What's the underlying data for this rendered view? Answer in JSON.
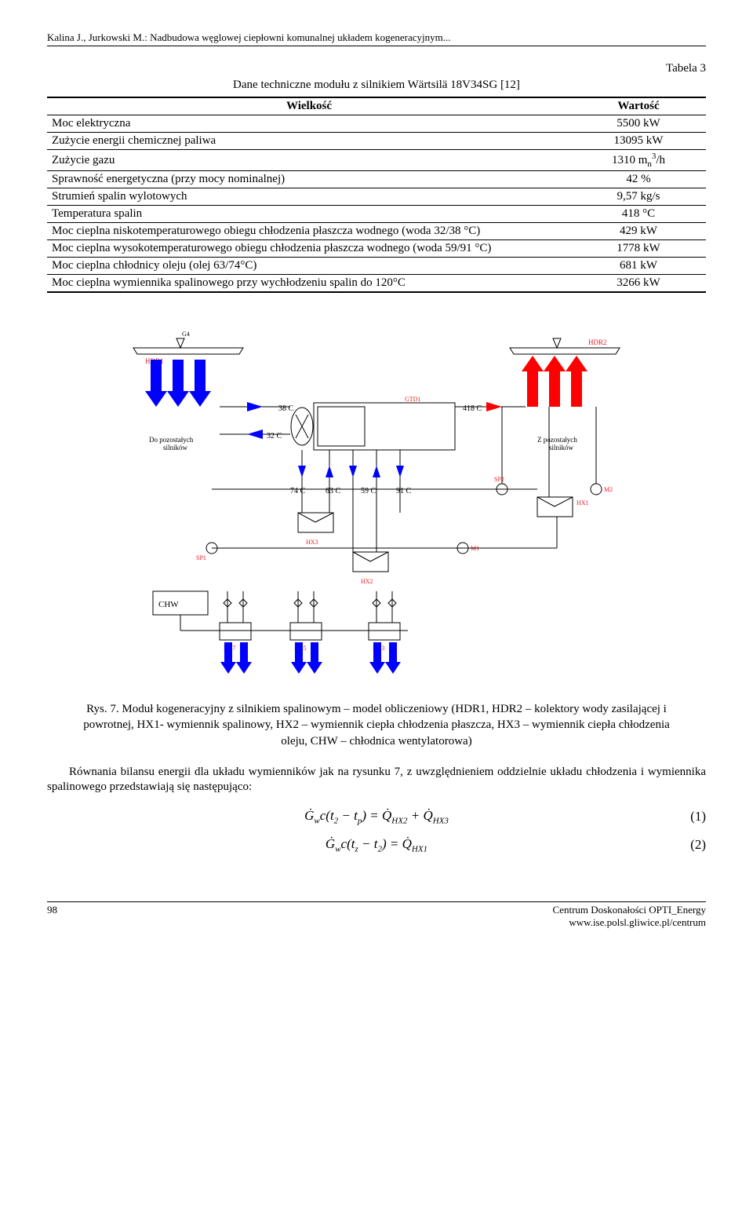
{
  "header": "Kalina J., Jurkowski M.: Nadbudowa węglowej ciepłowni komunalnej układem kogeneracyjnym...",
  "table": {
    "label": "Tabela 3",
    "caption": "Dane techniczne modułu z silnikiem Wärtsilä 18V34SG [12]",
    "head_col1": "Wielkość",
    "head_col2": "Wartość",
    "rows": [
      {
        "k": "Moc elektryczna",
        "v": "5500 kW"
      },
      {
        "k": "Zużycie energii chemicznej paliwa",
        "v": "13095 kW"
      },
      {
        "k": "Zużycie gazu",
        "v_html": "1310 m<sub>n</sub><sup>3</sup>/h"
      },
      {
        "k": "Sprawność energetyczna (przy mocy nominalnej)",
        "v": "42 %"
      },
      {
        "k": "Strumień spalin wylotowych",
        "v": "9,57 kg/s"
      },
      {
        "k": "Temperatura spalin",
        "v": "418 °C"
      },
      {
        "k": "Moc cieplna niskotemperaturowego obiegu chłodzenia płaszcza wodnego (woda 32/38 °C)",
        "v": "429 kW"
      },
      {
        "k": "Moc cieplna wysokotemperaturowego obiegu chłodzenia płaszcza wodnego (woda 59/91 °C)",
        "v": "1778 kW"
      },
      {
        "k": "Moc cieplna chłodnicy oleju (olej 63/74°C)",
        "v": "681 kW"
      },
      {
        "k": "Moc cieplna wymiennika spalinowego przy wychłodzeniu spalin do 120°C",
        "v": "3266 kW"
      }
    ]
  },
  "diagram": {
    "type": "flowchart",
    "background_color": "#ffffff",
    "arrow_blue": "#0000ff",
    "arrow_red": "#ff0000",
    "stroke_color": "#000000",
    "label_font_size": 9,
    "temp_font_size": 10,
    "hdr1": "HDR1",
    "hdr2": "HDR2",
    "gtd1": "GTD1",
    "label_left": "Do pozostałych silników",
    "label_right": "Z pozostałych silników",
    "temps": {
      "t38": "38 C",
      "t32": "32 C",
      "t418": "418 C",
      "t74": "74 C",
      "t63": "63 C",
      "t59": "59 C",
      "t91": "91 C"
    },
    "sp1": "SP1",
    "sp2": "SP2",
    "m1": "M1",
    "m2": "M2",
    "hx1": "HX1",
    "hx2": "HX2",
    "hx3": "HX3",
    "hx5": "HX5",
    "hx7": "HX7",
    "chw": "CHW",
    "g4": "G4"
  },
  "fig_caption": "Rys. 7. Moduł kogeneracyjny z silnikiem spalinowym – model obliczeniowy (HDR1, HDR2 – kolektory wody zasilającej i powrotnej, HX1- wymiennik spalinowy, HX2 – wymiennik ciepła chłodzenia płaszcza, HX3 – wymiennik ciepła chłodzenia oleju, CHW – chłodnica wentylatorowa)",
  "body_p1": "Równania bilansu energii dla układu wymienników jak na rysunku 7, z uwzględnieniem oddzielnie układu chłodzenia i wymiennika spalinowego przedstawiają się następująco:",
  "eq1_num": "(1)",
  "eq2_num": "(2)",
  "footer_page": "98",
  "footer_r1": "Centrum Doskonałości OPTI_Energy",
  "footer_r2": "www.ise.polsl.gliwice.pl/centrum"
}
